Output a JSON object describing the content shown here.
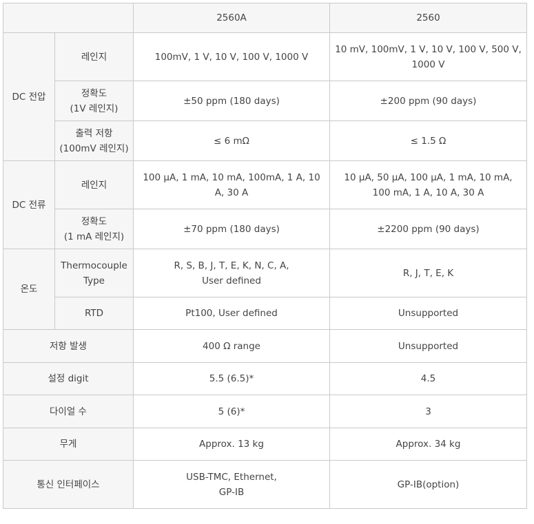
{
  "header": {
    "col_2560a": "2560A",
    "col_2560": "2560"
  },
  "dc_voltage": {
    "group": "DC 전압",
    "range": {
      "label": "레인지",
      "a": "100mV, 1 V, 10 V, 100 V, 1000 V",
      "b": "10 mV, 100mV, 1 V, 10 V, 100 V, 500 V, 1000 V"
    },
    "accuracy": {
      "label_1": "정확도",
      "label_2": "(1V 레인지)",
      "a": "±50 ppm (180 days)",
      "b": "±200 ppm (90 days)"
    },
    "output_resistance": {
      "label_1": "출력 저항",
      "label_2": "(100mV 레인지)",
      "a": "≤ 6 mΩ",
      "b": "≤ 1.5 Ω"
    }
  },
  "dc_current": {
    "group": "DC 전류",
    "range": {
      "label": "레인지",
      "a": "100 μA, 1 mA, 10 mA, 100mA, 1 A, 10 A, 30 A",
      "b": "10 μA, 50 μA, 100 μA, 1 mA, 10 mA, 100 mA, 1 A, 10 A, 30 A"
    },
    "accuracy": {
      "label_1": "정확도",
      "label_2": "(1 mA 레인지)",
      "a": "±70 ppm (180 days)",
      "b": "±2200 ppm (90 days)"
    }
  },
  "temperature": {
    "group": "온도",
    "thermocouple": {
      "label_1": "Thermocouple",
      "label_2": "Type",
      "a_1": "R, S, B, J, T, E, K, N, C, A,",
      "a_2": "User defined",
      "b": "R, J, T, E, K"
    },
    "rtd": {
      "label": "RTD",
      "a": "Pt100, User defined",
      "b": "Unsupported"
    }
  },
  "resistance_generation": {
    "label": "저항 발생",
    "a": "400 Ω range",
    "b": "Unsupported"
  },
  "setting_digit": {
    "label": "설정 digit",
    "a": "5.5 (6.5)*",
    "b": "4.5"
  },
  "dial_count": {
    "label": "다이얼 수",
    "a": "5 (6)*",
    "b": "3"
  },
  "weight": {
    "label": "무게",
    "a": "Approx. 13 kg",
    "b": "Approx. 34 kg"
  },
  "interface": {
    "label": "통신 인터페이스",
    "a_1": "USB-TMC, Ethernet,",
    "a_2": "GP-IB",
    "b": "GP-IB(option)"
  }
}
